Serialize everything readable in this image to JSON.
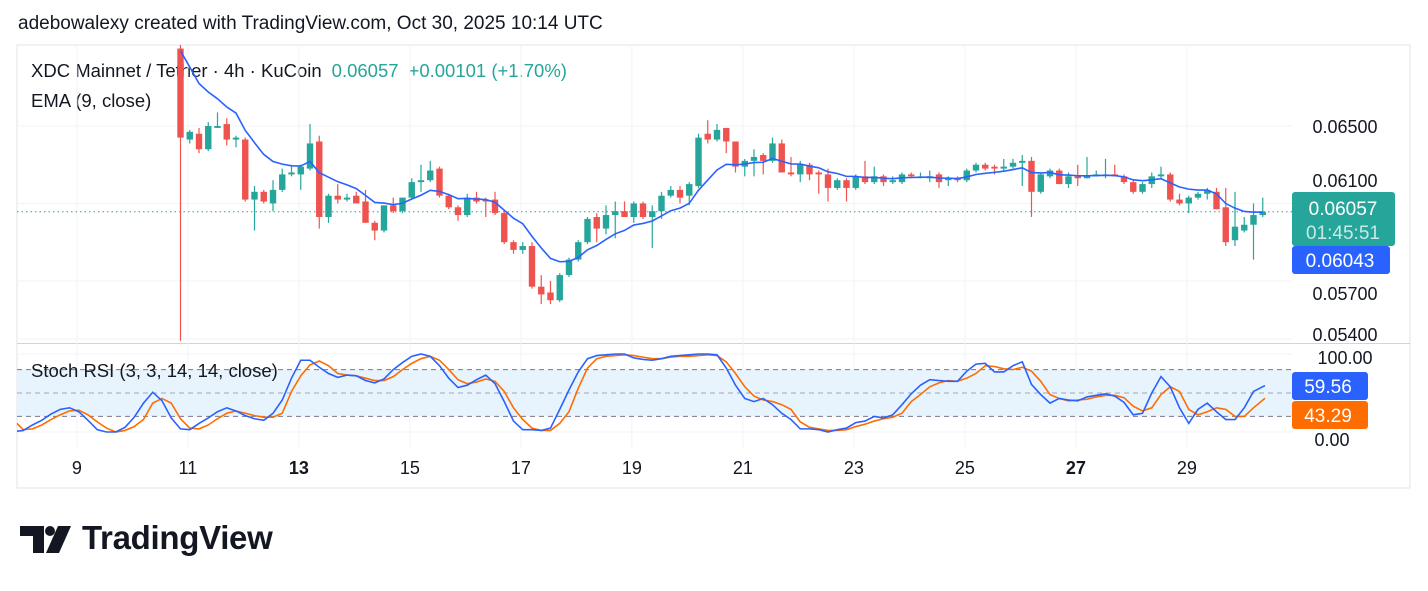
{
  "attribution": "adebowalexy created with TradingView.com, Oct 30, 2025 10:14 UTC",
  "legend": {
    "symbol": "XDC Mainnet / Tether · 4h · KuCoin",
    "last": "0.06057",
    "change": "+0.00101 (+1.70%)",
    "ema": "EMA (9, close)",
    "stoch": "Stoch RSI (3, 3, 14, 14, close)"
  },
  "price_tags": {
    "last": "0.06057",
    "countdown": "01:45:51",
    "ema": "0.06043",
    "stoch_k": "59.56",
    "stoch_d": "43.29"
  },
  "brand": "TradingView",
  "colors": {
    "up": "#26a69a",
    "down": "#ef5350",
    "ema": "#2962ff",
    "stoch_k": "#2962ff",
    "stoch_d": "#ff6d00",
    "band": "#e3f2fd"
  },
  "chart_data": [
    {
      "type": "candlestick",
      "interval": "4h",
      "price_axis": {
        "ticks": [
          "0.06500",
          "0.06100",
          "0.05700",
          "0.05400"
        ],
        "range": [
          0.0536,
          0.0695
        ]
      },
      "time_axis": {
        "ticks": [
          {
            "label": "9",
            "day": 9,
            "bold": false
          },
          {
            "label": "11",
            "day": 11,
            "bold": false
          },
          {
            "label": "13",
            "day": 13,
            "bold": true
          },
          {
            "label": "15",
            "day": 15,
            "bold": false
          },
          {
            "label": "17",
            "day": 17,
            "bold": false
          },
          {
            "label": "19",
            "day": 19,
            "bold": false
          },
          {
            "label": "21",
            "day": 21,
            "bold": false
          },
          {
            "label": "23",
            "day": 23,
            "bold": false
          },
          {
            "label": "25",
            "day": 25,
            "bold": false
          },
          {
            "label": "27",
            "day": 27,
            "bold": true
          },
          {
            "label": "29",
            "day": 29,
            "bold": false
          }
        ]
      },
      "last_price": 0.06057,
      "ema_last": 0.06043,
      "grid": true,
      "ohlc": [
        [
          0.069,
          0.0694,
          0.0539,
          0.0644
        ],
        [
          0.0643,
          0.0648,
          0.0641,
          0.0647
        ],
        [
          0.0646,
          0.0649,
          0.0636,
          0.0638
        ],
        [
          0.0638,
          0.0652,
          0.0637,
          0.065
        ],
        [
          0.0649,
          0.0657,
          0.0649,
          0.065
        ],
        [
          0.0651,
          0.0654,
          0.064,
          0.0643
        ],
        [
          0.0643,
          0.0645,
          0.0639,
          0.0644
        ],
        [
          0.0643,
          0.0644,
          0.0611,
          0.0612
        ],
        [
          0.0612,
          0.0619,
          0.0596,
          0.0616
        ],
        [
          0.0616,
          0.0617,
          0.061,
          0.0611
        ],
        [
          0.061,
          0.0622,
          0.0606,
          0.0617
        ],
        [
          0.0617,
          0.0628,
          0.0616,
          0.0625
        ],
        [
          0.0625,
          0.063,
          0.0624,
          0.0626
        ],
        [
          0.0625,
          0.063,
          0.0617,
          0.0629
        ],
        [
          0.0628,
          0.0651,
          0.0627,
          0.0641
        ],
        [
          0.0642,
          0.0645,
          0.0597,
          0.0603
        ],
        [
          0.0603,
          0.0615,
          0.06,
          0.0614
        ],
        [
          0.0614,
          0.062,
          0.061,
          0.0612
        ],
        [
          0.0612,
          0.0615,
          0.0611,
          0.0613
        ],
        [
          0.0614,
          0.0616,
          0.061,
          0.061
        ],
        [
          0.0611,
          0.0617,
          0.06,
          0.06
        ],
        [
          0.06,
          0.0601,
          0.0591,
          0.0596
        ],
        [
          0.0596,
          0.0609,
          0.0595,
          0.0609
        ],
        [
          0.0609,
          0.0613,
          0.0605,
          0.0606
        ],
        [
          0.0606,
          0.0613,
          0.0605,
          0.0613
        ],
        [
          0.0613,
          0.0623,
          0.0612,
          0.0621
        ],
        [
          0.0621,
          0.063,
          0.0616,
          0.0622
        ],
        [
          0.0622,
          0.0632,
          0.0621,
          0.0627
        ],
        [
          0.0628,
          0.0629,
          0.0613,
          0.0614
        ],
        [
          0.0614,
          0.0615,
          0.0607,
          0.0608
        ],
        [
          0.0608,
          0.0609,
          0.0601,
          0.0604
        ],
        [
          0.0604,
          0.0615,
          0.0603,
          0.0613
        ],
        [
          0.0613,
          0.0616,
          0.061,
          0.0611
        ],
        [
          0.0612,
          0.0613,
          0.0603,
          0.0611
        ],
        [
          0.0612,
          0.0616,
          0.0604,
          0.0605
        ],
        [
          0.0605,
          0.0606,
          0.0589,
          0.059
        ],
        [
          0.059,
          0.0591,
          0.0584,
          0.0586
        ],
        [
          0.0586,
          0.059,
          0.0584,
          0.0588
        ],
        [
          0.0588,
          0.059,
          0.0566,
          0.0567
        ],
        [
          0.0567,
          0.0573,
          0.0558,
          0.0563
        ],
        [
          0.0564,
          0.057,
          0.0558,
          0.056
        ],
        [
          0.056,
          0.0574,
          0.0559,
          0.0573
        ],
        [
          0.0573,
          0.0582,
          0.0572,
          0.0581
        ],
        [
          0.0581,
          0.0591,
          0.058,
          0.059
        ],
        [
          0.059,
          0.0603,
          0.0589,
          0.0602
        ],
        [
          0.0603,
          0.0605,
          0.059,
          0.0597
        ],
        [
          0.0597,
          0.0609,
          0.0594,
          0.0604
        ],
        [
          0.0604,
          0.0611,
          0.0592,
          0.0606
        ],
        [
          0.0606,
          0.0611,
          0.0603,
          0.0603
        ],
        [
          0.0603,
          0.0611,
          0.06,
          0.061
        ],
        [
          0.061,
          0.0611,
          0.0602,
          0.0603
        ],
        [
          0.0603,
          0.0609,
          0.0587,
          0.0606
        ],
        [
          0.0606,
          0.0616,
          0.0602,
          0.0614
        ],
        [
          0.0614,
          0.0619,
          0.0613,
          0.0617
        ],
        [
          0.0617,
          0.0619,
          0.061,
          0.0613
        ],
        [
          0.0614,
          0.0621,
          0.0609,
          0.062
        ],
        [
          0.0619,
          0.0646,
          0.0618,
          0.0644
        ],
        [
          0.0646,
          0.0653,
          0.0641,
          0.0643
        ],
        [
          0.0643,
          0.0651,
          0.0642,
          0.0648
        ],
        [
          0.0649,
          0.0649,
          0.0636,
          0.0642
        ],
        [
          0.0642,
          0.0642,
          0.0626,
          0.0629
        ],
        [
          0.0629,
          0.0633,
          0.0624,
          0.0632
        ],
        [
          0.0632,
          0.0638,
          0.0624,
          0.0634
        ],
        [
          0.0635,
          0.0636,
          0.0625,
          0.0632
        ],
        [
          0.0632,
          0.0644,
          0.0631,
          0.0641
        ],
        [
          0.0641,
          0.0643,
          0.0626,
          0.0626
        ],
        [
          0.0626,
          0.0634,
          0.0624,
          0.0625
        ],
        [
          0.0625,
          0.0632,
          0.0621,
          0.063
        ],
        [
          0.063,
          0.0631,
          0.0622,
          0.0625
        ],
        [
          0.0626,
          0.0627,
          0.0615,
          0.0625
        ],
        [
          0.0625,
          0.0628,
          0.0611,
          0.0618
        ],
        [
          0.0618,
          0.0623,
          0.0617,
          0.0622
        ],
        [
          0.0622,
          0.0623,
          0.0611,
          0.0618
        ],
        [
          0.0618,
          0.0625,
          0.0617,
          0.0624
        ],
        [
          0.0624,
          0.0632,
          0.062,
          0.0621
        ],
        [
          0.0621,
          0.0629,
          0.062,
          0.0624
        ],
        [
          0.0624,
          0.0625,
          0.0619,
          0.0621
        ],
        [
          0.0621,
          0.0624,
          0.062,
          0.0622
        ],
        [
          0.0621,
          0.0626,
          0.062,
          0.0625
        ],
        [
          0.0625,
          0.0626,
          0.0623,
          0.0624
        ],
        [
          0.0624,
          0.0626,
          0.0623,
          0.0624
        ],
        [
          0.0623,
          0.0627,
          0.0621,
          0.0624
        ],
        [
          0.0625,
          0.0626,
          0.0618,
          0.0621
        ],
        [
          0.0622,
          0.0624,
          0.0619,
          0.0623
        ],
        [
          0.0623,
          0.0624,
          0.0621,
          0.0622
        ],
        [
          0.0622,
          0.0628,
          0.0621,
          0.0627
        ],
        [
          0.0627,
          0.0631,
          0.0626,
          0.063
        ],
        [
          0.063,
          0.0631,
          0.0627,
          0.0628
        ],
        [
          0.0629,
          0.063,
          0.0625,
          0.0628
        ],
        [
          0.0628,
          0.0633,
          0.0627,
          0.0629
        ],
        [
          0.0629,
          0.0633,
          0.0628,
          0.0631
        ],
        [
          0.0631,
          0.0635,
          0.0619,
          0.0632
        ],
        [
          0.0632,
          0.0634,
          0.0603,
          0.0616
        ],
        [
          0.0616,
          0.0626,
          0.0615,
          0.0625
        ],
        [
          0.0624,
          0.0628,
          0.0623,
          0.0627
        ],
        [
          0.0627,
          0.0628,
          0.062,
          0.062
        ],
        [
          0.062,
          0.0626,
          0.0618,
          0.0624
        ],
        [
          0.0624,
          0.063,
          0.0619,
          0.0623
        ],
        [
          0.0623,
          0.0634,
          0.0623,
          0.0624
        ],
        [
          0.0624,
          0.0627,
          0.0624,
          0.0625
        ],
        [
          0.0625,
          0.0633,
          0.0623,
          0.0625
        ],
        [
          0.0625,
          0.063,
          0.0624,
          0.0624
        ],
        [
          0.0624,
          0.0625,
          0.062,
          0.0621
        ],
        [
          0.0621,
          0.0622,
          0.0615,
          0.0616
        ],
        [
          0.0616,
          0.0621,
          0.0615,
          0.062
        ],
        [
          0.062,
          0.0626,
          0.0618,
          0.0624
        ],
        [
          0.0624,
          0.0629,
          0.0623,
          0.0625
        ],
        [
          0.0625,
          0.0626,
          0.0611,
          0.0612
        ],
        [
          0.0612,
          0.0615,
          0.0609,
          0.061
        ],
        [
          0.061,
          0.0614,
          0.0605,
          0.0613
        ],
        [
          0.0613,
          0.0616,
          0.0612,
          0.0615
        ],
        [
          0.0615,
          0.0618,
          0.0612,
          0.0617
        ],
        [
          0.0616,
          0.0618,
          0.0607,
          0.0607
        ],
        [
          0.0608,
          0.0618,
          0.0588,
          0.059
        ],
        [
          0.0591,
          0.0616,
          0.0588,
          0.0598
        ],
        [
          0.0596,
          0.0603,
          0.0595,
          0.0599
        ],
        [
          0.0599,
          0.061,
          0.0581,
          0.0604
        ],
        [
          0.0604,
          0.0613,
          0.0603,
          0.06057
        ]
      ]
    },
    {
      "type": "line",
      "ticks": [
        "100.00",
        "0.00"
      ],
      "range": [
        0,
        100
      ],
      "bands": [
        80,
        50,
        20
      ],
      "series": [
        {
          "key": "k",
          "values": [
            1,
            2,
            9,
            15,
            23,
            29,
            31,
            26,
            15,
            3,
            0,
            0,
            6,
            19,
            37,
            51,
            40,
            18,
            4,
            3,
            11,
            18,
            26,
            31,
            27,
            21,
            17,
            15,
            24,
            41,
            69,
            92,
            92,
            83,
            75,
            70,
            73,
            72,
            66,
            63,
            68,
            80,
            89,
            97,
            100,
            97,
            85,
            69,
            57,
            60,
            67,
            73,
            62,
            39,
            14,
            3,
            3,
            2,
            5,
            29,
            54,
            77,
            94,
            98,
            99,
            100,
            100,
            95,
            93,
            92,
            94,
            97,
            98,
            99,
            100,
            100,
            99,
            82,
            60,
            43,
            39,
            43,
            35,
            24,
            16,
            4,
            4,
            3,
            0,
            3,
            5,
            12,
            14,
            20,
            18,
            22,
            35,
            49,
            60,
            67,
            66,
            65,
            65,
            78,
            87,
            88,
            77,
            77,
            85,
            90,
            61,
            48,
            37,
            43,
            41,
            40,
            45,
            47,
            49,
            46,
            38,
            22,
            24,
            50,
            71,
            58,
            31,
            11,
            29,
            37,
            26,
            16,
            16,
            31,
            52,
            59.56
          ]
        },
        {
          "key": "d",
          "values": [
            11,
            3,
            4,
            9,
            16,
            22,
            27,
            28,
            22,
            13,
            5,
            0,
            2,
            7,
            16,
            37,
            43,
            37,
            17,
            5,
            4,
            9,
            17,
            24,
            27,
            24,
            21,
            19,
            19,
            24,
            52,
            72,
            86,
            91,
            85,
            75,
            73,
            72,
            69,
            66,
            66,
            71,
            80,
            88,
            94,
            97,
            92,
            80,
            67,
            62,
            64,
            68,
            65,
            52,
            31,
            16,
            5,
            2,
            2,
            11,
            26,
            56,
            82,
            94,
            97,
            98,
            99,
            98,
            96,
            94,
            94,
            96,
            97,
            97,
            98,
            99,
            98,
            90,
            75,
            58,
            46,
            41,
            39,
            35,
            29,
            13,
            6,
            4,
            2,
            2,
            3,
            7,
            10,
            14,
            17,
            19,
            24,
            39,
            48,
            58,
            63,
            66,
            65,
            69,
            75,
            85,
            84,
            81,
            80,
            83,
            78,
            65,
            48,
            43,
            40,
            41,
            42,
            45,
            47,
            47,
            44,
            33,
            27,
            31,
            48,
            58,
            52,
            29,
            22,
            26,
            31,
            29,
            20,
            20,
            31,
            43.29
          ]
        }
      ]
    }
  ]
}
